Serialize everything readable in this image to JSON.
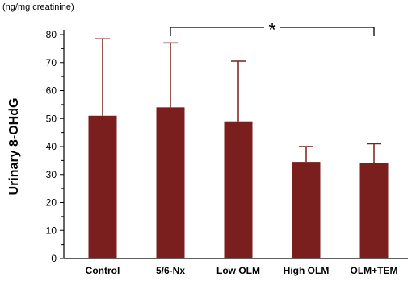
{
  "chart_data": {
    "type": "bar",
    "unit": "(ng/mg creatinine)",
    "ylabel": "Urinary 8-OHdG",
    "xlabel": "",
    "ylim": [
      0,
      80
    ],
    "yticks": [
      0,
      10,
      20,
      30,
      40,
      50,
      60,
      70,
      80
    ],
    "categories": [
      "Control",
      "5/6-Nx",
      "Low OLM",
      "High OLM",
      "OLM+TEM"
    ],
    "values": [
      51,
      54,
      49,
      34.5,
      34
    ],
    "error_upper": [
      78.5,
      77,
      70.5,
      40,
      41
    ],
    "significance": {
      "from": "5/6-Nx",
      "to": "OLM+TEM",
      "label": "*"
    },
    "bar_color": "#7a1e1e",
    "grid": false,
    "legend": "none"
  }
}
